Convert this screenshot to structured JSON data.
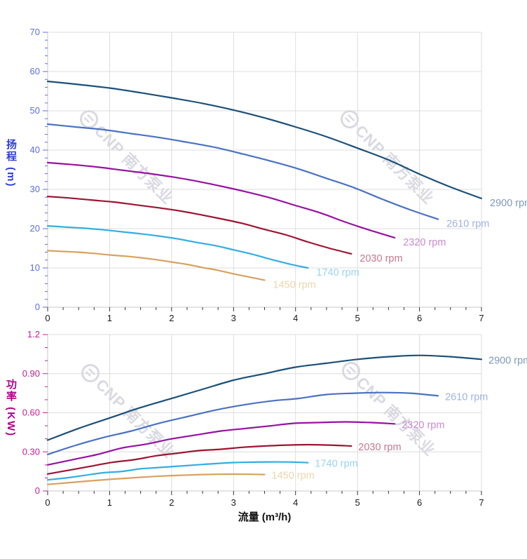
{
  "watermark": {
    "brand": "CNP 南方泵业",
    "color": "#d9d9e2"
  },
  "x_axis": {
    "title": "流量 (m³/h)",
    "min": 0,
    "max": 7,
    "major_step": 1,
    "minor_step": 0.25,
    "tick_labels": [
      "0",
      "1",
      "2",
      "3",
      "4",
      "5",
      "6",
      "7"
    ],
    "label_color": "#1a1a1a",
    "title_color": "#111111",
    "tick_color": "#333333"
  },
  "chart_data": [
    {
      "type": "line",
      "title": "",
      "xlabel": "流量 (m³/h)",
      "ylabel": "扬程 (m)",
      "xlim": [
        0,
        7
      ],
      "ylim": [
        0,
        70
      ],
      "grid": true,
      "legend_position": "end-of-line-labels",
      "y_axis": {
        "title_main": "扬程",
        "title_unit": "(m)",
        "major_step": 10,
        "minor_step": 2,
        "tick_labels": [
          "0",
          "10",
          "20",
          "30",
          "40",
          "50",
          "60",
          "70"
        ],
        "label_color": "#5b6ee0",
        "title_color": "#2e3ed8",
        "tick_color": "#5b6ee0"
      },
      "series": [
        {
          "name": "2900 rpm",
          "rpm": 2900,
          "color": "#1b5078",
          "label_color": "#7d99b7",
          "points": [
            [
              0,
              57.5
            ],
            [
              0.5,
              56.7
            ],
            [
              1,
              55.8
            ],
            [
              1.5,
              54.6
            ],
            [
              2,
              53.3
            ],
            [
              2.5,
              51.9
            ],
            [
              3,
              50.2
            ],
            [
              3.5,
              48.2
            ],
            [
              4,
              45.9
            ],
            [
              4.5,
              43.4
            ],
            [
              5,
              40.5
            ],
            [
              5.5,
              37.5
            ],
            [
              6,
              33.9
            ],
            [
              6.5,
              30.6
            ],
            [
              7,
              27.7
            ]
          ]
        },
        {
          "name": "2610 rpm",
          "rpm": 2610,
          "color": "#4a72c2",
          "label_color": "#9fb3e0",
          "points": [
            [
              0,
              46.6
            ],
            [
              0.45,
              45.9
            ],
            [
              0.9,
              45.2
            ],
            [
              1.35,
              44.2
            ],
            [
              1.8,
              43.2
            ],
            [
              2.25,
              42.0
            ],
            [
              2.7,
              40.7
            ],
            [
              3.15,
              39.0
            ],
            [
              3.6,
              37.2
            ],
            [
              4.05,
              35.2
            ],
            [
              4.5,
              32.8
            ],
            [
              4.95,
              30.4
            ],
            [
              5.4,
              27.5
            ],
            [
              5.85,
              24.8
            ],
            [
              6.3,
              22.4
            ]
          ]
        },
        {
          "name": "2320 rpm",
          "rpm": 2320,
          "color": "#9712a2",
          "label_color": "#c989cf",
          "points": [
            [
              0,
              36.8
            ],
            [
              0.4,
              36.3
            ],
            [
              0.8,
              35.7
            ],
            [
              1.2,
              34.9
            ],
            [
              1.6,
              34.1
            ],
            [
              2,
              33.2
            ],
            [
              2.4,
              32.1
            ],
            [
              2.8,
              30.8
            ],
            [
              3.2,
              29.4
            ],
            [
              3.6,
              27.8
            ],
            [
              4,
              25.9
            ],
            [
              4.4,
              24.0
            ],
            [
              4.8,
              21.7
            ],
            [
              5.2,
              19.6
            ],
            [
              5.6,
              17.7
            ]
          ]
        },
        {
          "name": "2030 rpm",
          "rpm": 2030,
          "color": "#9e1431",
          "label_color": "#c5798f",
          "points": [
            [
              0,
              28.2
            ],
            [
              0.35,
              27.8
            ],
            [
              0.7,
              27.3
            ],
            [
              1.05,
              26.8
            ],
            [
              1.4,
              26.1
            ],
            [
              1.75,
              25.4
            ],
            [
              2.1,
              24.6
            ],
            [
              2.45,
              23.6
            ],
            [
              2.8,
              22.5
            ],
            [
              3.15,
              21.3
            ],
            [
              3.5,
              19.8
            ],
            [
              3.85,
              18.4
            ],
            [
              4.2,
              16.6
            ],
            [
              4.55,
              15.0
            ],
            [
              4.9,
              13.6
            ]
          ]
        },
        {
          "name": "1740 rpm",
          "rpm": 1740,
          "color": "#33ade2",
          "label_color": "#99d4f0",
          "points": [
            [
              0,
              20.7
            ],
            [
              0.3,
              20.4
            ],
            [
              0.6,
              20.1
            ],
            [
              0.9,
              19.7
            ],
            [
              1.2,
              19.2
            ],
            [
              1.5,
              18.7
            ],
            [
              1.8,
              18.1
            ],
            [
              2.1,
              17.4
            ],
            [
              2.4,
              16.5
            ],
            [
              2.7,
              15.7
            ],
            [
              3,
              14.6
            ],
            [
              3.3,
              13.5
            ],
            [
              3.6,
              12.2
            ],
            [
              3.9,
              11.0
            ],
            [
              4.2,
              10.0
            ]
          ]
        },
        {
          "name": "1450 rpm",
          "rpm": 1450,
          "color": "#d8a160",
          "label_color": "#ecd6ad",
          "points": [
            [
              0,
              14.4
            ],
            [
              0.25,
              14.2
            ],
            [
              0.5,
              14.0
            ],
            [
              0.75,
              13.7
            ],
            [
              1,
              13.3
            ],
            [
              1.25,
              13.0
            ],
            [
              1.5,
              12.6
            ],
            [
              1.75,
              12.1
            ],
            [
              2,
              11.5
            ],
            [
              2.25,
              10.9
            ],
            [
              2.5,
              10.1
            ],
            [
              2.75,
              9.4
            ],
            [
              3,
              8.5
            ],
            [
              3.25,
              7.7
            ],
            [
              3.5,
              6.9
            ]
          ]
        }
      ]
    },
    {
      "type": "line",
      "title": "",
      "xlabel": "流量 (m³/h)",
      "ylabel": "功率 (KW)",
      "xlim": [
        0,
        7
      ],
      "ylim": [
        0,
        1.2
      ],
      "grid": true,
      "legend_position": "end-of-line-labels",
      "y_axis": {
        "title_main": "功率",
        "title_unit": "(KW)",
        "major_step": 0.3,
        "minor_step": 0.1,
        "tick_labels": [
          "0",
          "0.30",
          "0.60",
          "0.90",
          "1.2"
        ],
        "label_color": "#c02192",
        "title_color": "#b2008a",
        "tick_color": "#c02192"
      },
      "series": [
        {
          "name": "2900 rpm",
          "rpm": 2900,
          "color": "#1b5078",
          "label_color": "#7d99b7",
          "points": [
            [
              0,
              0.39
            ],
            [
              0.5,
              0.48
            ],
            [
              1,
              0.56
            ],
            [
              1.5,
              0.64
            ],
            [
              2,
              0.71
            ],
            [
              2.5,
              0.78
            ],
            [
              3,
              0.85
            ],
            [
              3.5,
              0.9
            ],
            [
              4,
              0.95
            ],
            [
              4.5,
              0.98
            ],
            [
              5,
              1.01
            ],
            [
              5.5,
              1.03
            ],
            [
              6,
              1.04
            ],
            [
              6.5,
              1.03
            ],
            [
              7,
              1.01
            ]
          ]
        },
        {
          "name": "2610 rpm",
          "rpm": 2610,
          "color": "#4a72c2",
          "label_color": "#9fb3e0",
          "points": [
            [
              0,
              0.28
            ],
            [
              0.45,
              0.35
            ],
            [
              0.9,
              0.41
            ],
            [
              1.35,
              0.46
            ],
            [
              1.8,
              0.52
            ],
            [
              2.25,
              0.57
            ],
            [
              2.7,
              0.62
            ],
            [
              3.15,
              0.66
            ],
            [
              3.6,
              0.69
            ],
            [
              4.05,
              0.71
            ],
            [
              4.5,
              0.74
            ],
            [
              4.95,
              0.75
            ],
            [
              5.4,
              0.755
            ],
            [
              5.85,
              0.75
            ],
            [
              6.3,
              0.73
            ]
          ]
        },
        {
          "name": "2320 rpm",
          "rpm": 2320,
          "color": "#9712a2",
          "label_color": "#c989cf",
          "points": [
            [
              0,
              0.2
            ],
            [
              0.4,
              0.24
            ],
            [
              0.8,
              0.28
            ],
            [
              1.2,
              0.33
            ],
            [
              1.6,
              0.36
            ],
            [
              2,
              0.4
            ],
            [
              2.4,
              0.43
            ],
            [
              2.8,
              0.46
            ],
            [
              3.2,
              0.48
            ],
            [
              3.6,
              0.5
            ],
            [
              4,
              0.52
            ],
            [
              4.4,
              0.525
            ],
            [
              4.8,
              0.53
            ],
            [
              5.2,
              0.525
            ],
            [
              5.6,
              0.515
            ]
          ]
        },
        {
          "name": "2030 rpm",
          "rpm": 2030,
          "color": "#9e1431",
          "label_color": "#c5798f",
          "points": [
            [
              0,
              0.13
            ],
            [
              0.35,
              0.16
            ],
            [
              0.7,
              0.19
            ],
            [
              1.05,
              0.22
            ],
            [
              1.4,
              0.24
            ],
            [
              1.75,
              0.27
            ],
            [
              2.1,
              0.29
            ],
            [
              2.45,
              0.31
            ],
            [
              2.8,
              0.32
            ],
            [
              3.15,
              0.335
            ],
            [
              3.5,
              0.345
            ],
            [
              3.85,
              0.352
            ],
            [
              4.2,
              0.355
            ],
            [
              4.55,
              0.352
            ],
            [
              4.9,
              0.345
            ]
          ]
        },
        {
          "name": "1740 rpm",
          "rpm": 1740,
          "color": "#33ade2",
          "label_color": "#99d4f0",
          "points": [
            [
              0,
              0.085
            ],
            [
              0.3,
              0.1
            ],
            [
              0.6,
              0.12
            ],
            [
              0.9,
              0.14
            ],
            [
              1.2,
              0.15
            ],
            [
              1.5,
              0.17
            ],
            [
              1.8,
              0.18
            ],
            [
              2.1,
              0.19
            ],
            [
              2.4,
              0.2
            ],
            [
              2.7,
              0.21
            ],
            [
              3,
              0.218
            ],
            [
              3.3,
              0.221
            ],
            [
              3.6,
              0.223
            ],
            [
              3.9,
              0.222
            ],
            [
              4.2,
              0.217
            ]
          ]
        },
        {
          "name": "1450 rpm",
          "rpm": 1450,
          "color": "#d8a160",
          "label_color": "#ecd6ad",
          "points": [
            [
              0,
              0.05
            ],
            [
              0.25,
              0.06
            ],
            [
              0.5,
              0.07
            ],
            [
              0.75,
              0.08
            ],
            [
              1,
              0.089
            ],
            [
              1.25,
              0.097
            ],
            [
              1.5,
              0.105
            ],
            [
              1.75,
              0.112
            ],
            [
              2,
              0.118
            ],
            [
              2.25,
              0.122
            ],
            [
              2.5,
              0.126
            ],
            [
              2.75,
              0.128
            ],
            [
              3,
              0.129
            ],
            [
              3.25,
              0.128
            ],
            [
              3.5,
              0.126
            ]
          ]
        }
      ]
    }
  ]
}
